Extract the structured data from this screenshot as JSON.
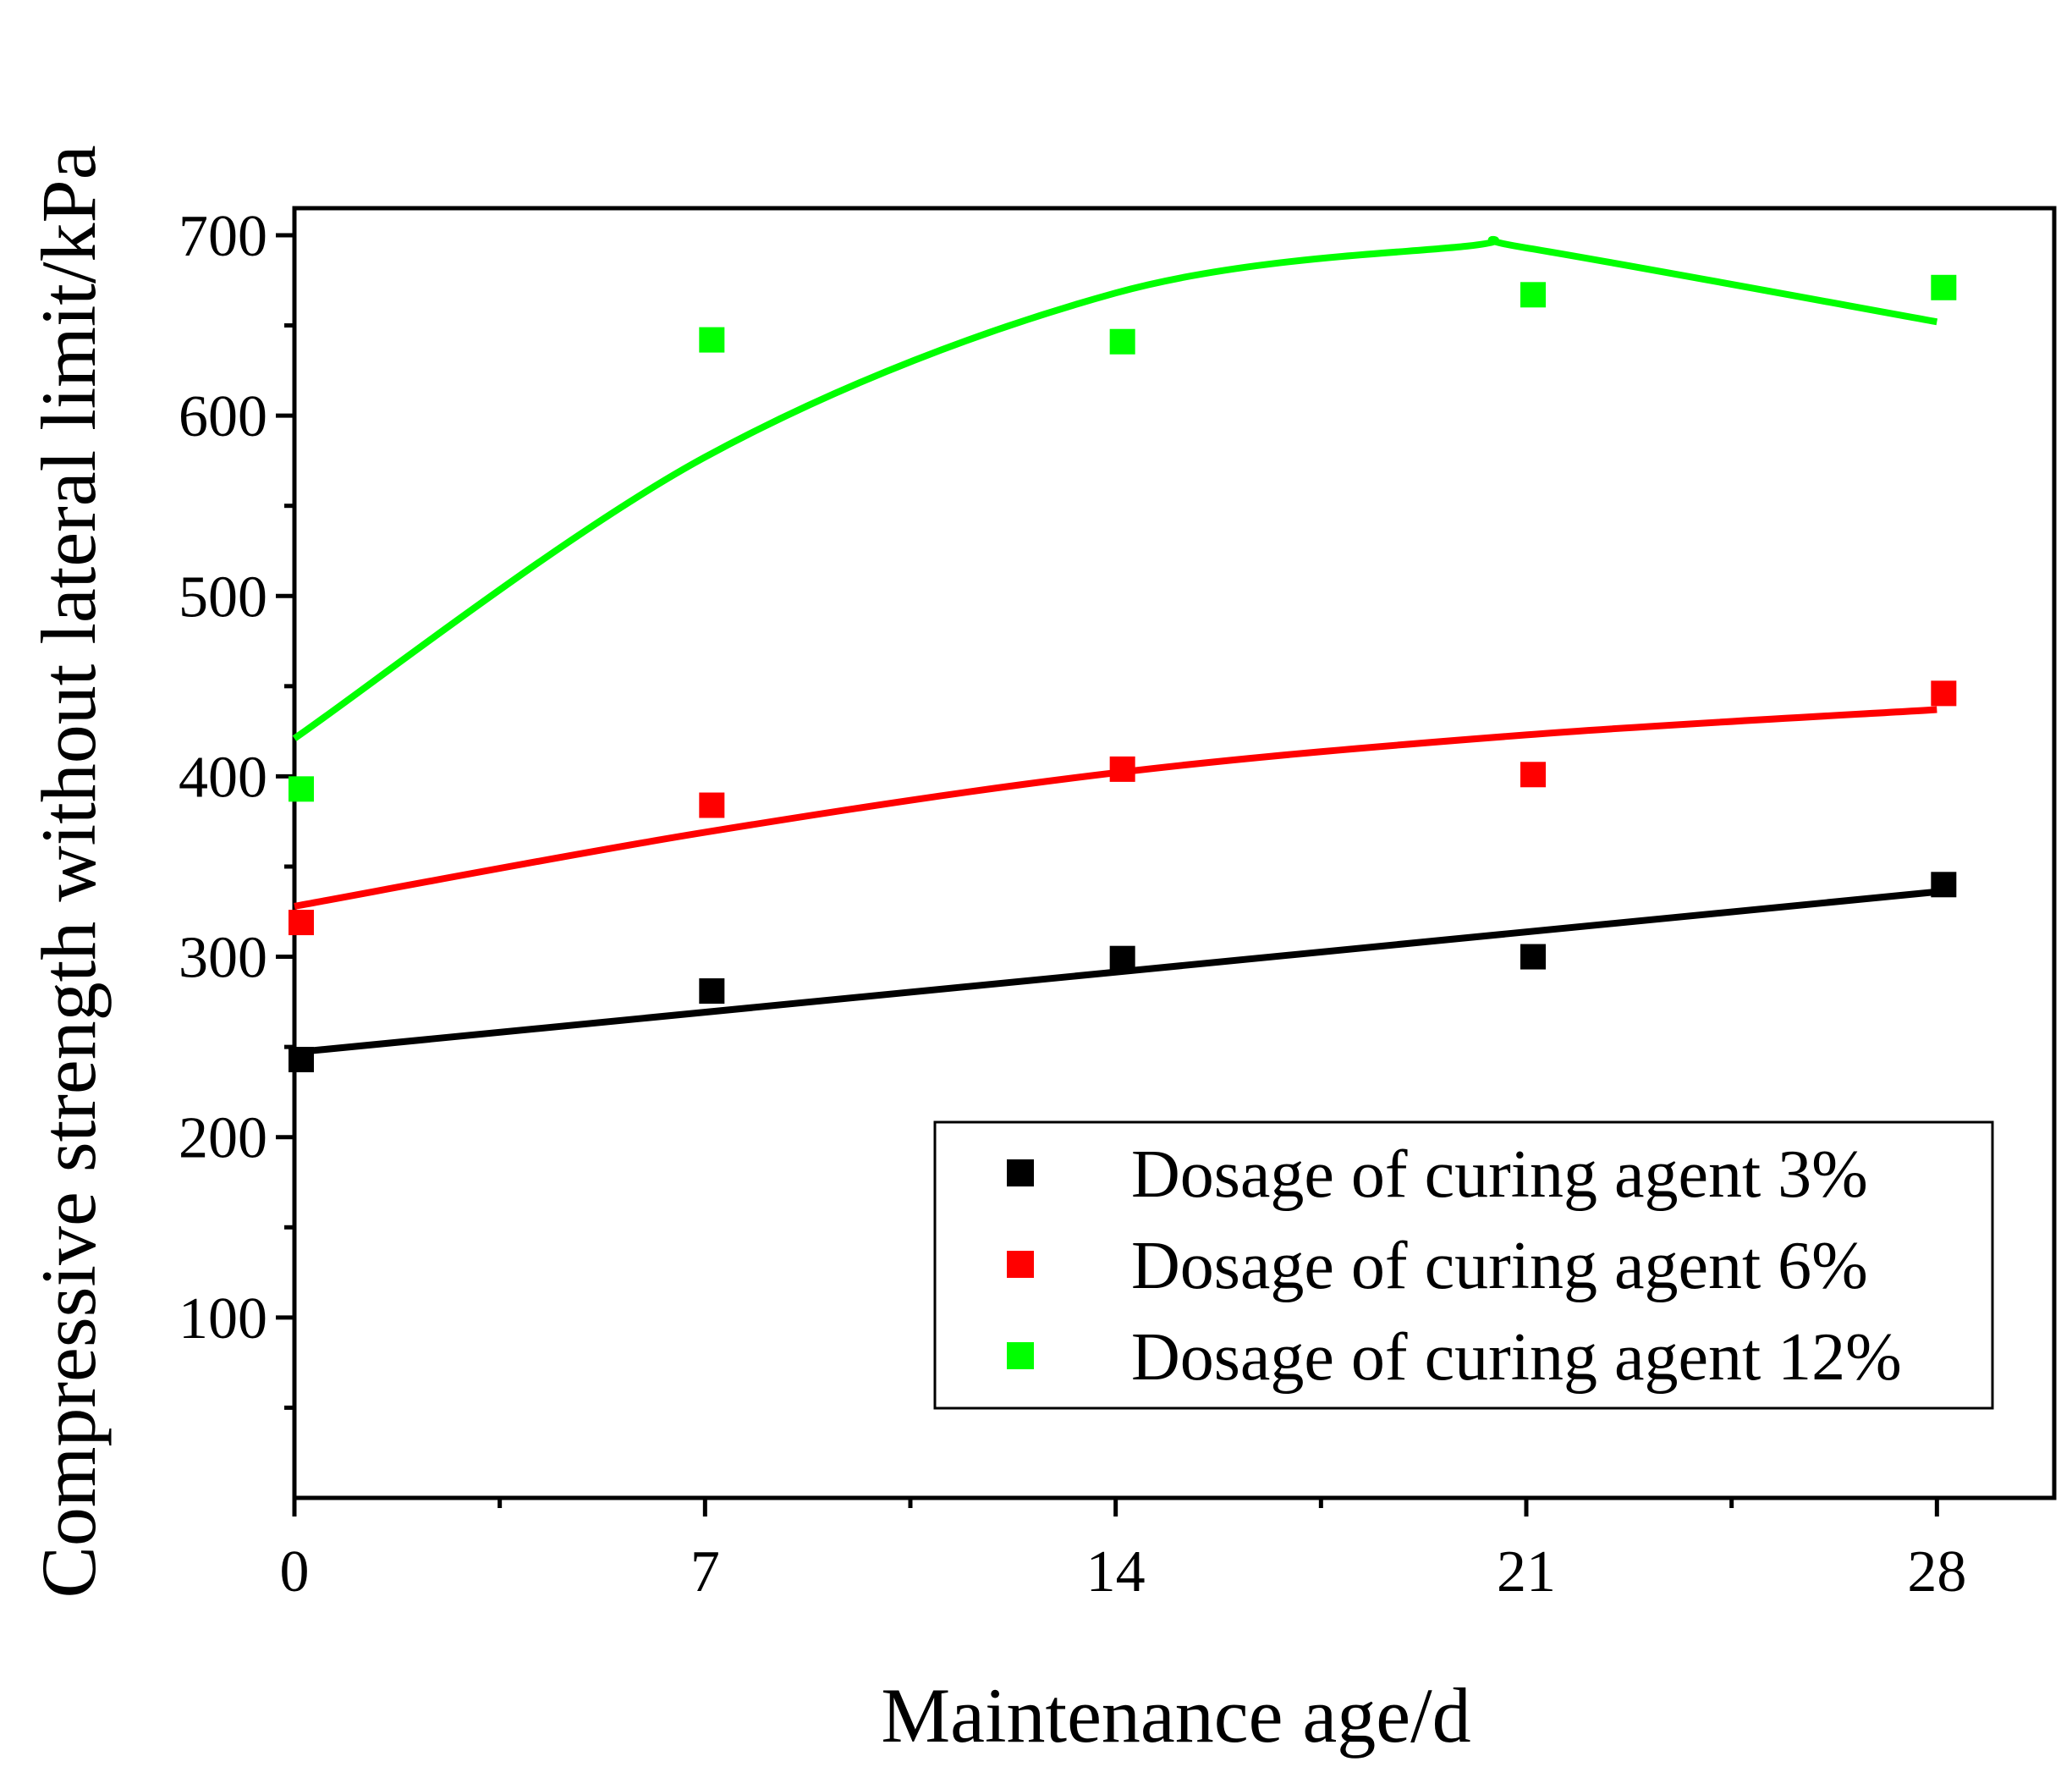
{
  "chart_data": {
    "type": "scatter",
    "title": "",
    "xlabel": "Maintenance age/d",
    "ylabel": "Compressive strength without lateral limit/kPa",
    "xlim": [
      0,
      30
    ],
    "ylim": [
      0,
      715
    ],
    "xticks": [
      0,
      7,
      14,
      21,
      28
    ],
    "xtick_labels": [
      "0",
      "7",
      "14",
      "21",
      "28"
    ],
    "yticks": [
      100,
      200,
      300,
      400,
      500,
      600,
      700
    ],
    "ytick_labels": [
      "100",
      "200",
      "300",
      "400",
      "500",
      "600",
      "700"
    ],
    "grid": false,
    "legend_position": "bottom-right",
    "series": [
      {
        "name": "Dosage of curing agent 3%",
        "color": "#000000",
        "marker": "square",
        "x": [
          0,
          7,
          14,
          21,
          28
        ],
        "y": [
          243,
          281,
          299,
          300,
          340
        ],
        "fit": [
          {
            "x": 0,
            "y": 247
          },
          {
            "x": 28,
            "y": 336
          }
        ]
      },
      {
        "name": "Dosage of curing agent 6%",
        "color": "#ff0000",
        "marker": "square",
        "x": [
          0,
          7,
          14,
          21,
          28
        ],
        "y": [
          319,
          384,
          404,
          401,
          446
        ],
        "fit": [
          {
            "x": 0,
            "y": 328
          },
          {
            "x": 7,
            "y": 369
          },
          {
            "x": 14,
            "y": 402
          },
          {
            "x": 21,
            "y": 423
          },
          {
            "x": 28,
            "y": 437
          }
        ]
      },
      {
        "name": "Dosage of curing agent 12%",
        "color": "#00ff00",
        "marker": "square",
        "x": [
          0,
          7,
          14,
          21,
          28
        ],
        "y": [
          393,
          642,
          641,
          667,
          671
        ],
        "fit": [
          {
            "x": 0,
            "y": 421
          },
          {
            "x": 7,
            "y": 577
          },
          {
            "x": 14,
            "y": 668
          },
          {
            "x": 20,
            "y": 694
          },
          {
            "x": 21,
            "y": 693
          },
          {
            "x": 28,
            "y": 652
          }
        ]
      }
    ]
  }
}
